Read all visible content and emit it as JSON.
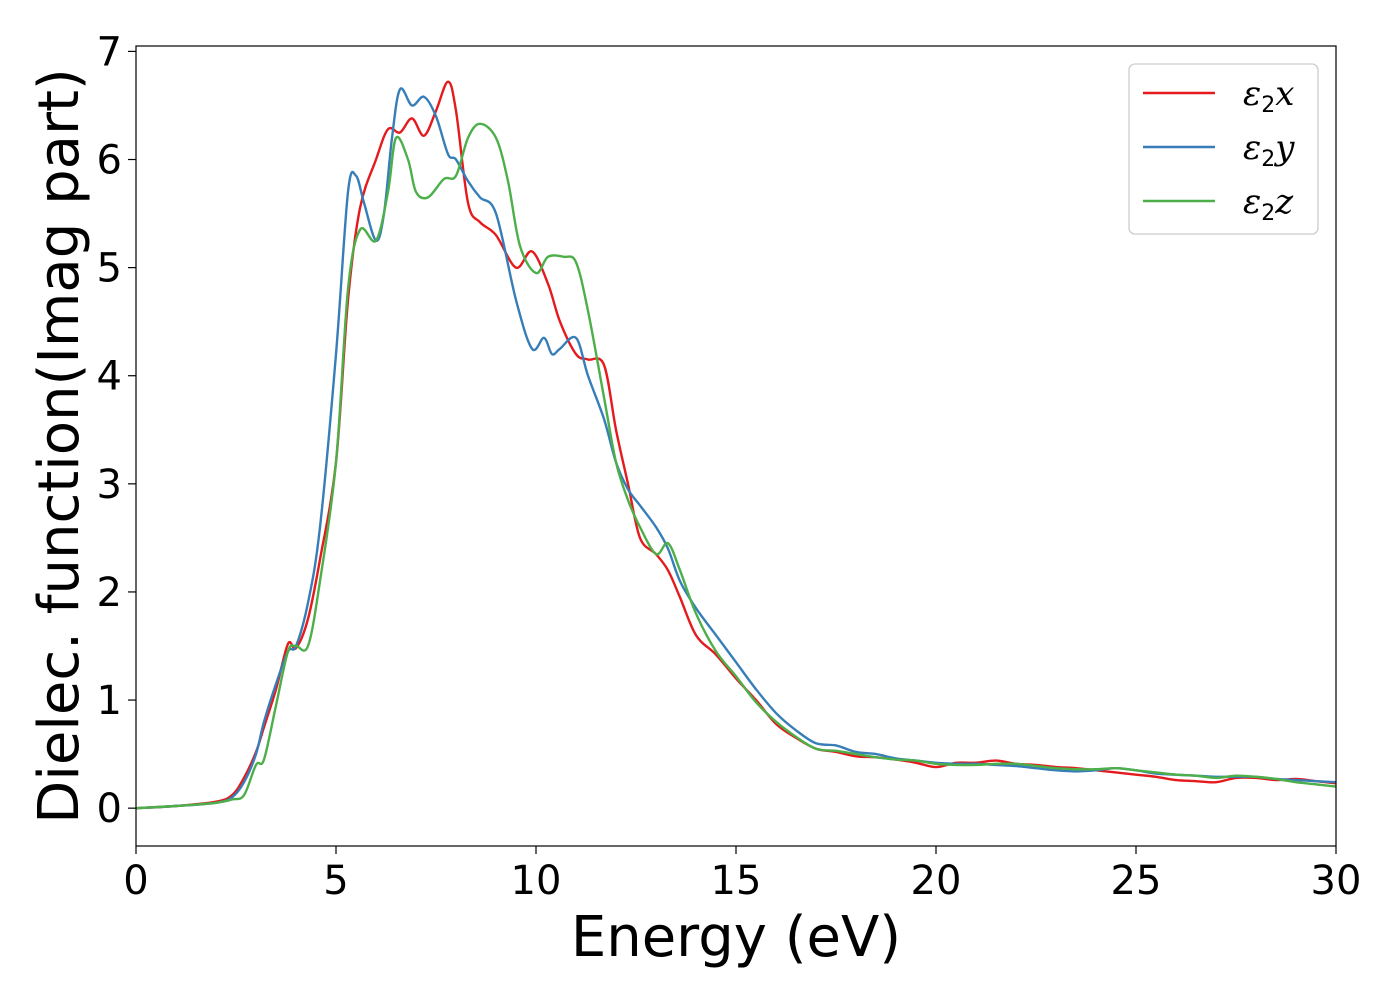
{
  "chart_data": {
    "type": "line",
    "xlabel": "Energy (eV)",
    "ylabel": "Dielec. function(Imag part)",
    "xlim": [
      0,
      30
    ],
    "ylim": [
      -0.35,
      7.05
    ],
    "xticks": [
      0,
      5,
      10,
      15,
      20,
      25,
      30
    ],
    "yticks": [
      0,
      1,
      2,
      3,
      4,
      5,
      6,
      7
    ],
    "grid": false,
    "legend_position": "top-right",
    "series": [
      {
        "name": "ε2x",
        "symbol": "ε",
        "sub": "2",
        "suffix": "x",
        "color": "#e41a1c",
        "x": [
          0,
          1,
          2,
          2.4,
          2.7,
          3.0,
          3.2,
          3.5,
          3.8,
          4.0,
          4.3,
          4.6,
          5.0,
          5.3,
          5.6,
          6.0,
          6.3,
          6.6,
          6.9,
          7.2,
          7.5,
          7.8,
          8.0,
          8.3,
          8.6,
          9.0,
          9.5,
          9.9,
          10.3,
          10.6,
          11.0,
          11.3,
          11.7,
          12.0,
          12.3,
          12.6,
          13.0,
          13.3,
          13.6,
          14.0,
          14.5,
          15.0,
          15.5,
          16.0,
          16.5,
          17.0,
          17.5,
          18.0,
          18.5,
          19.0,
          19.5,
          20.0,
          20.5,
          21.0,
          21.5,
          22.0,
          22.5,
          23.0,
          23.5,
          24.0,
          24.5,
          25.0,
          25.5,
          26.0,
          26.5,
          27.0,
          27.5,
          28.0,
          28.5,
          29.0,
          29.5,
          30.0
        ],
        "y": [
          0.0,
          0.02,
          0.06,
          0.12,
          0.28,
          0.52,
          0.75,
          1.1,
          1.52,
          1.48,
          1.75,
          2.3,
          3.2,
          4.7,
          5.55,
          6.0,
          6.28,
          6.25,
          6.38,
          6.22,
          6.45,
          6.72,
          6.45,
          5.6,
          5.42,
          5.3,
          5.0,
          5.15,
          4.85,
          4.5,
          4.2,
          4.15,
          4.1,
          3.5,
          3.0,
          2.5,
          2.35,
          2.2,
          1.95,
          1.6,
          1.42,
          1.2,
          1.0,
          0.78,
          0.65,
          0.55,
          0.52,
          0.48,
          0.47,
          0.45,
          0.42,
          0.38,
          0.42,
          0.42,
          0.44,
          0.41,
          0.4,
          0.38,
          0.37,
          0.35,
          0.33,
          0.31,
          0.29,
          0.26,
          0.25,
          0.24,
          0.28,
          0.28,
          0.26,
          0.27,
          0.25,
          0.23
        ]
      },
      {
        "name": "ε2y",
        "symbol": "ε",
        "sub": "2",
        "suffix": "y",
        "color": "#377eb8",
        "x": [
          0,
          1,
          2,
          2.4,
          2.7,
          3.0,
          3.2,
          3.5,
          3.8,
          4.0,
          4.3,
          4.6,
          5.0,
          5.3,
          5.5,
          5.7,
          6.0,
          6.2,
          6.4,
          6.6,
          6.9,
          7.2,
          7.5,
          7.8,
          8.0,
          8.3,
          8.6,
          9.0,
          9.5,
          9.9,
          10.2,
          10.4,
          10.6,
          11.0,
          11.3,
          11.7,
          12.0,
          12.3,
          12.6,
          13.0,
          13.3,
          13.6,
          14.0,
          14.5,
          15.0,
          15.5,
          16.0,
          16.5,
          17.0,
          17.5,
          18.0,
          18.5,
          19.0,
          19.5,
          20.0,
          20.5,
          21.0,
          21.5,
          22.0,
          22.5,
          23.0,
          23.5,
          24.0,
          24.5,
          25.0,
          25.5,
          26.0,
          26.5,
          27.0,
          27.5,
          28.0,
          28.5,
          29.0,
          29.5,
          30.0
        ],
        "y": [
          0.0,
          0.02,
          0.05,
          0.1,
          0.24,
          0.5,
          0.8,
          1.15,
          1.45,
          1.5,
          1.9,
          2.6,
          4.2,
          5.7,
          5.85,
          5.6,
          5.25,
          5.5,
          6.2,
          6.65,
          6.5,
          6.58,
          6.4,
          6.05,
          6.0,
          5.8,
          5.65,
          5.5,
          4.7,
          4.25,
          4.35,
          4.2,
          4.25,
          4.35,
          4.0,
          3.6,
          3.2,
          2.95,
          2.8,
          2.6,
          2.4,
          2.1,
          1.85,
          1.6,
          1.35,
          1.1,
          0.88,
          0.72,
          0.6,
          0.58,
          0.52,
          0.5,
          0.46,
          0.44,
          0.42,
          0.41,
          0.41,
          0.4,
          0.39,
          0.37,
          0.35,
          0.34,
          0.35,
          0.37,
          0.35,
          0.32,
          0.31,
          0.3,
          0.29,
          0.29,
          0.29,
          0.27,
          0.26,
          0.25,
          0.24
        ]
      },
      {
        "name": "ε2z",
        "symbol": "ε",
        "sub": "2",
        "suffix": "z",
        "color": "#4daf4a",
        "x": [
          0,
          1,
          2,
          2.4,
          2.7,
          3.0,
          3.2,
          3.5,
          3.8,
          4.0,
          4.3,
          4.6,
          5.0,
          5.3,
          5.6,
          6.0,
          6.3,
          6.5,
          6.8,
          7.0,
          7.3,
          7.7,
          8.0,
          8.3,
          8.6,
          9.0,
          9.3,
          9.6,
          10.0,
          10.3,
          10.7,
          11.0,
          11.3,
          11.7,
          12.0,
          12.3,
          12.6,
          13.0,
          13.3,
          13.6,
          14.0,
          14.5,
          15.0,
          15.5,
          16.0,
          16.5,
          17.0,
          17.5,
          18.0,
          18.5,
          19.0,
          19.5,
          20.0,
          20.5,
          21.0,
          21.5,
          22.0,
          22.5,
          23.0,
          23.5,
          24.0,
          24.5,
          25.0,
          25.5,
          26.0,
          26.5,
          27.0,
          27.5,
          28.0,
          28.5,
          29.0,
          29.5,
          30.0
        ],
        "y": [
          0.0,
          0.02,
          0.05,
          0.08,
          0.12,
          0.4,
          0.45,
          0.95,
          1.45,
          1.5,
          1.5,
          2.1,
          3.2,
          4.8,
          5.35,
          5.25,
          5.7,
          6.2,
          6.0,
          5.7,
          5.65,
          5.82,
          5.85,
          6.2,
          6.33,
          6.2,
          5.8,
          5.2,
          4.95,
          5.1,
          5.1,
          5.05,
          4.6,
          3.8,
          3.2,
          2.85,
          2.6,
          2.35,
          2.45,
          2.2,
          1.8,
          1.45,
          1.22,
          0.98,
          0.8,
          0.66,
          0.55,
          0.53,
          0.5,
          0.47,
          0.45,
          0.44,
          0.41,
          0.4,
          0.4,
          0.41,
          0.41,
          0.39,
          0.37,
          0.36,
          0.36,
          0.37,
          0.35,
          0.33,
          0.31,
          0.3,
          0.28,
          0.3,
          0.29,
          0.27,
          0.24,
          0.22,
          0.2
        ]
      }
    ]
  }
}
